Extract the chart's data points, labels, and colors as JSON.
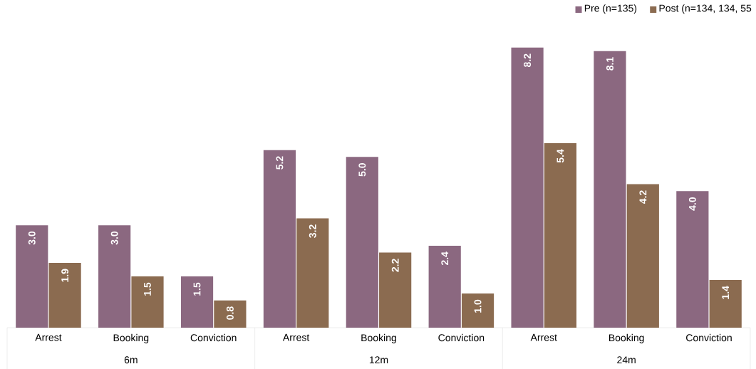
{
  "chart_data": {
    "type": "bar",
    "categories": [
      "Arrest",
      "Booking",
      "Conviction",
      "Arrest",
      "Booking",
      "Conviction",
      "Arrest",
      "Booking",
      "Conviction"
    ],
    "series": [
      {
        "name": "Pre (n=135)",
        "color": "#8b6880",
        "values": [
          3.0,
          3.0,
          1.5,
          5.2,
          5.0,
          2.4,
          8.2,
          8.1,
          4.0
        ],
        "value_labels": [
          "3.0",
          "3.0",
          "1.5",
          "5.2",
          "5.0",
          "2.4",
          "8.2",
          "8.1",
          "4.0"
        ]
      },
      {
        "name": "Post (n=134, 134, 55",
        "color": "#8b6b50",
        "values": [
          1.9,
          1.5,
          0.8,
          3.2,
          2.2,
          1.0,
          5.4,
          4.2,
          1.4
        ],
        "value_labels": [
          "1.9",
          "1.5",
          "0.8",
          "3.2",
          "2.2",
          "1.0",
          "5.4",
          "4.2",
          "1.4"
        ]
      }
    ],
    "annotations": [
      "6m",
      "12m",
      "24m"
    ],
    "legend": "top right"
  }
}
